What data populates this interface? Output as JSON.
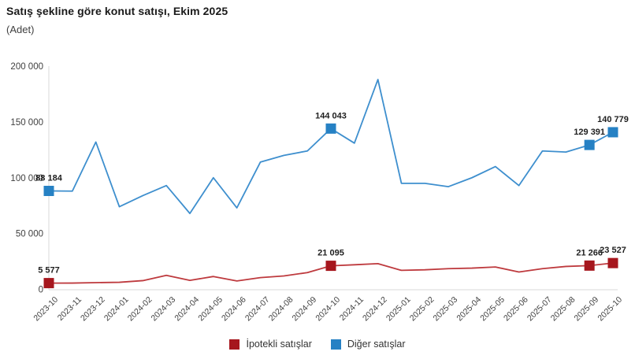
{
  "title": "Satış şekline göre konut satışı, Ekim 2025",
  "subtitle": "(Adet)",
  "legend": {
    "items": [
      {
        "id": "ipotekli",
        "label": "İpotekli satışlar",
        "color": "#A6161D"
      },
      {
        "id": "diger",
        "label": "Diğer satışlar",
        "color": "#2681C4"
      }
    ]
  },
  "chart_data": {
    "type": "line",
    "title": "Satış şekline göre konut satışı, Ekim 2025",
    "xlabel": "",
    "ylabel": "Adet",
    "ylim": [
      0,
      200000
    ],
    "grid": false,
    "legend_position": "bottom-center",
    "axis_color": "#D9D9D9",
    "categories": [
      "2023-10",
      "2023-11",
      "2023-12",
      "2024-01",
      "2024-02",
      "2024-03",
      "2024-04",
      "2024-05",
      "2024-06",
      "2024-07",
      "2024-08",
      "2024-09",
      "2024-10",
      "2024-11",
      "2024-12",
      "2025-01",
      "2025-02",
      "2025-03",
      "2025-04",
      "2025-05",
      "2025-06",
      "2025-07",
      "2025-08",
      "2025-09",
      "2025-10"
    ],
    "yticks": [
      {
        "label": "0",
        "v": 0
      },
      {
        "label": "50 000",
        "v": 50000
      },
      {
        "label": "100 000",
        "v": 100000
      },
      {
        "label": "150 000",
        "v": 150000
      },
      {
        "label": "200 000",
        "v": 200000
      }
    ],
    "series": [
      {
        "id": "ipotekli",
        "name": "İpotekli satışlar",
        "line_color": "#BE3A3E",
        "marker_color": "#A6161D",
        "values": [
          5577,
          5600,
          6000,
          6300,
          7800,
          12500,
          8000,
          11500,
          7500,
          10500,
          12000,
          15000,
          21095,
          22000,
          23000,
          17000,
          17500,
          18500,
          19000,
          20000,
          15500,
          18500,
          20500,
          21266,
          23527
        ],
        "labels": {
          "0": "5 577",
          "12": "21 095",
          "23": "21 266",
          "24": "23 527"
        }
      },
      {
        "id": "diger",
        "name": "Diğer satışlar",
        "line_color": "#3E8FCE",
        "marker_color": "#2681C4",
        "values": [
          88184,
          88000,
          132000,
          74000,
          84000,
          93000,
          68000,
          100000,
          73000,
          114000,
          120000,
          124000,
          144043,
          131000,
          188000,
          95000,
          95000,
          92000,
          100000,
          110000,
          93000,
          124000,
          123000,
          129391,
          140779
        ],
        "labels": {
          "0": "88 184",
          "12": "144 043",
          "23": "129 391",
          "24": "140 779"
        }
      }
    ]
  }
}
